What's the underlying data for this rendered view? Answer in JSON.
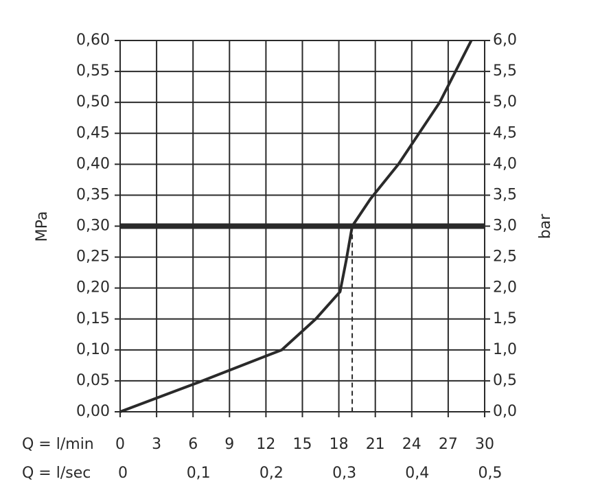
{
  "chart_data": {
    "type": "line",
    "x": [
      0,
      6.5,
      13.3,
      16.1,
      18.1,
      18.6,
      19.1,
      20.6,
      22.9,
      26.3,
      28.9
    ],
    "values": [
      0,
      0.048,
      0.1,
      0.15,
      0.194,
      0.244,
      0.3,
      0.344,
      0.4,
      0.5,
      0.6
    ],
    "color": "#2a2a2a",
    "xlabel": "Q = l/min",
    "x2label": "Q = l/sec",
    "ylabel": "MPa",
    "y2label": "bar",
    "xlim": [
      0,
      30
    ],
    "xticks": [
      0,
      3,
      6,
      9,
      12,
      15,
      18,
      21,
      24,
      27,
      30
    ],
    "x2lim": [
      0,
      0.5
    ],
    "x2ticks": [
      0,
      {
        "value": 0.1,
        "label": "0,1"
      },
      {
        "value": 0.2,
        "label": "0,2"
      },
      {
        "value": 0.3,
        "label": "0,3"
      },
      {
        "value": 0.4,
        "label": "0,4"
      },
      {
        "value": 0.5,
        "label": "0,5"
      }
    ],
    "ylim": [
      0,
      0.6
    ],
    "yticks": [
      {
        "value": 0,
        "label": "0,00"
      },
      {
        "value": 0.05,
        "label": "0,05"
      },
      {
        "value": 0.1,
        "label": "0,10"
      },
      {
        "value": 0.15,
        "label": "0,15"
      },
      {
        "value": 0.2,
        "label": "0,20"
      },
      {
        "value": 0.25,
        "label": "0,25"
      },
      {
        "value": 0.3,
        "label": "0,30"
      },
      {
        "value": 0.35,
        "label": "0,35"
      },
      {
        "value": 0.4,
        "label": "0,40"
      },
      {
        "value": 0.45,
        "label": "0,45"
      },
      {
        "value": 0.5,
        "label": "0,50"
      },
      {
        "value": 0.55,
        "label": "0,55"
      },
      {
        "value": 0.6,
        "label": "0,60"
      }
    ],
    "y2lim": [
      0,
      6
    ],
    "y2ticks": [
      {
        "value": 0,
        "label": "0,0"
      },
      {
        "value": 0.5,
        "label": "0,5"
      },
      {
        "value": 1,
        "label": "1,0"
      },
      {
        "value": 1.5,
        "label": "1,5"
      },
      {
        "value": 2,
        "label": "2,0"
      },
      {
        "value": 2.5,
        "label": "2,5"
      },
      {
        "value": 3,
        "label": "3,0"
      },
      {
        "value": 3.5,
        "label": "3,5"
      },
      {
        "value": 4,
        "label": "4,0"
      },
      {
        "value": 4.5,
        "label": "4,5"
      },
      {
        "value": 5,
        "label": "5,0"
      },
      {
        "value": 5.5,
        "label": "5,5"
      },
      {
        "value": 6,
        "label": "6,0"
      }
    ],
    "hline": 0.3,
    "vline": 19.1,
    "grid": true
  }
}
